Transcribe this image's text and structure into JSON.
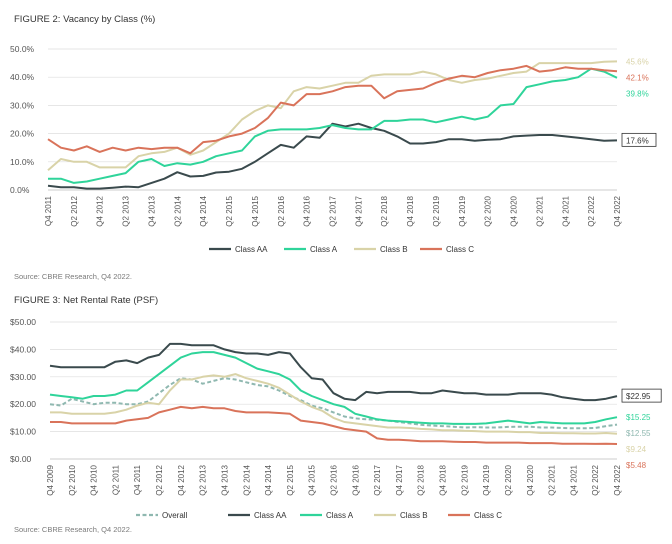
{
  "fig2": {
    "title": "FIGURE 2: Vacancy by Class (%)",
    "source": "Source: CBRE Research, Q4 2022."
  },
  "fig3": {
    "title": "FIGURE 3: Net Rental Rate (PSF)",
    "source": "Source: CBRE Research, Q4 2022."
  },
  "chart_data": [
    {
      "type": "line",
      "title": "FIGURE 2: Vacancy by Class (%)",
      "x": [
        "Q4 2011",
        "Q1 2012",
        "Q2 2012",
        "Q3 2012",
        "Q4 2012",
        "Q1 2013",
        "Q2 2013",
        "Q3 2013",
        "Q4 2013",
        "Q1 2014",
        "Q2 2014",
        "Q3 2014",
        "Q4 2014",
        "Q1 2015",
        "Q2 2015",
        "Q3 2015",
        "Q4 2015",
        "Q1 2016",
        "Q2 2016",
        "Q3 2016",
        "Q4 2016",
        "Q1 2017",
        "Q2 2017",
        "Q3 2017",
        "Q4 2017",
        "Q1 2018",
        "Q2 2018",
        "Q3 2018",
        "Q4 2018",
        "Q1 2019",
        "Q2 2019",
        "Q3 2019",
        "Q4 2019",
        "Q1 2020",
        "Q2 2020",
        "Q3 2020",
        "Q4 2020",
        "Q1 2021",
        "Q2 2021",
        "Q3 2021",
        "Q4 2021",
        "Q1 2022",
        "Q2 2022",
        "Q3 2022",
        "Q4 2022"
      ],
      "x_tick_labels": [
        "Q4 2011",
        "Q2 2012",
        "Q4 2012",
        "Q2 2013",
        "Q4 2013",
        "Q2 2014",
        "Q4 2014",
        "Q2 2015",
        "Q4 2015",
        "Q2 2016",
        "Q4 2016",
        "Q2 2017",
        "Q4 2017",
        "Q2 2018",
        "Q4 2018",
        "Q2 2019",
        "Q4 2019",
        "Q2 2020",
        "Q4 2020",
        "Q2 2021",
        "Q4 2021",
        "Q2 2022",
        "Q4 2022"
      ],
      "y_tick_labels": [
        "0.0%",
        "10.0%",
        "20.0%",
        "30.0%",
        "40.0%",
        "50.0%"
      ],
      "ylim": [
        0,
        50
      ],
      "grid": true,
      "legend": "bottom",
      "series": [
        {
          "name": "Class AA",
          "color": "#3a4a4d",
          "values": [
            1.5,
            1.0,
            1.0,
            0.5,
            0.5,
            0.8,
            1.2,
            1.0,
            2.5,
            4.0,
            6.3,
            4.8,
            5.0,
            6.2,
            6.5,
            7.5,
            10.0,
            13.0,
            16.0,
            15.0,
            19.0,
            18.5,
            23.5,
            22.5,
            23.5,
            22.0,
            21.0,
            19.0,
            16.5,
            16.5,
            17.0,
            18.0,
            18.0,
            17.5,
            17.8,
            18.0,
            19.0,
            19.3,
            19.5,
            19.5,
            19.0,
            18.5,
            18.0,
            17.5,
            17.6
          ]
        },
        {
          "name": "Class A",
          "color": "#2fd49a",
          "values": [
            4.0,
            4.0,
            2.5,
            3.0,
            4.0,
            5.0,
            6.0,
            10.0,
            11.0,
            8.5,
            9.5,
            9.0,
            10.0,
            12.0,
            13.0,
            14.0,
            19.0,
            21.0,
            21.5,
            21.5,
            21.5,
            22.0,
            23.0,
            22.0,
            21.5,
            21.5,
            24.5,
            24.5,
            25.0,
            25.0,
            24.0,
            25.0,
            26.0,
            25.0,
            26.0,
            30.0,
            30.5,
            36.5,
            37.5,
            38.5,
            39.0,
            40.0,
            43.0,
            42.0,
            39.8
          ]
        },
        {
          "name": "Class B",
          "color": "#d9d3a8",
          "values": [
            7.0,
            11.0,
            10.0,
            10.0,
            8.0,
            8.0,
            8.0,
            12.0,
            13.0,
            13.5,
            15.0,
            12.5,
            14.0,
            17.0,
            20.0,
            25.0,
            28.0,
            30.0,
            29.0,
            35.0,
            36.5,
            36.0,
            37.0,
            38.0,
            38.0,
            40.5,
            41.0,
            41.0,
            41.0,
            42.0,
            41.0,
            39.0,
            38.0,
            39.0,
            39.5,
            40.5,
            41.5,
            42.0,
            45.0,
            45.0,
            45.0,
            45.0,
            45.0,
            45.5,
            45.6
          ]
        },
        {
          "name": "Class C",
          "color": "#d9735a",
          "values": [
            18.0,
            15.0,
            14.0,
            15.5,
            13.5,
            15.0,
            14.0,
            15.0,
            14.5,
            15.0,
            15.0,
            13.0,
            17.0,
            17.5,
            19.0,
            20.0,
            22.0,
            25.5,
            31.0,
            30.0,
            34.0,
            34.0,
            35.0,
            36.5,
            37.0,
            37.0,
            32.5,
            35.0,
            35.5,
            36.0,
            38.0,
            39.5,
            40.5,
            40.0,
            41.5,
            42.5,
            43.0,
            44.0,
            42.0,
            42.5,
            43.5,
            43.0,
            43.0,
            42.5,
            42.1
          ]
        }
      ],
      "callouts": [
        {
          "series": "Class B",
          "label": "45.6%"
        },
        {
          "series": "Class C",
          "label": "42.1%"
        },
        {
          "series": "Class A",
          "label": "39.8%"
        },
        {
          "series": "Class AA",
          "label": "17.6%"
        }
      ]
    },
    {
      "type": "line",
      "title": "FIGURE 3: Net Rental Rate (PSF)",
      "x": [
        "Q4 2009",
        "Q1 2010",
        "Q2 2010",
        "Q3 2010",
        "Q4 2010",
        "Q1 2011",
        "Q2 2011",
        "Q3 2011",
        "Q4 2011",
        "Q1 2012",
        "Q2 2012",
        "Q3 2012",
        "Q4 2012",
        "Q1 2013",
        "Q2 2013",
        "Q3 2013",
        "Q4 2013",
        "Q1 2014",
        "Q2 2014",
        "Q3 2014",
        "Q4 2014",
        "Q1 2015",
        "Q2 2015",
        "Q3 2015",
        "Q4 2015",
        "Q1 2016",
        "Q2 2016",
        "Q3 2016",
        "Q4 2016",
        "Q1 2017",
        "Q2 2017",
        "Q3 2017",
        "Q4 2017",
        "Q1 2018",
        "Q2 2018",
        "Q3 2018",
        "Q4 2018",
        "Q1 2019",
        "Q2 2019",
        "Q3 2019",
        "Q4 2019",
        "Q1 2020",
        "Q2 2020",
        "Q3 2020",
        "Q4 2020",
        "Q1 2021",
        "Q2 2021",
        "Q3 2021",
        "Q4 2021",
        "Q1 2022",
        "Q2 2022",
        "Q3 2022",
        "Q4 2022"
      ],
      "x_tick_labels": [
        "Q4 2009",
        "Q2 2010",
        "Q4 2010",
        "Q2 2011",
        "Q4 2011",
        "Q2 2012",
        "Q4 2012",
        "Q2 2013",
        "Q4 2013",
        "Q2 2014",
        "Q4 2014",
        "Q2 2015",
        "Q4 2015",
        "Q2 2016",
        "Q4 2016",
        "Q2 2017",
        "Q4 2017",
        "Q2 2018",
        "Q4 2018",
        "Q2 2019",
        "Q4 2019",
        "Q2 2020",
        "Q4 2020",
        "Q2 2021",
        "Q4 2021",
        "Q2 2022",
        "Q4 2022"
      ],
      "y_tick_labels": [
        "$0.00",
        "$10.00",
        "$20.00",
        "$30.00",
        "$40.00",
        "$50.00"
      ],
      "ylim": [
        0,
        50
      ],
      "grid": true,
      "legend": "bottom",
      "series": [
        {
          "name": "Overall",
          "color": "#8fb8b0",
          "dashed": true,
          "values": [
            20.0,
            19.5,
            22.0,
            21.0,
            20.0,
            20.5,
            20.5,
            20.0,
            20.0,
            21.0,
            24.0,
            27.0,
            29.5,
            29.0,
            27.5,
            28.5,
            29.5,
            29.0,
            28.0,
            27.0,
            26.5,
            25.0,
            23.0,
            21.5,
            19.5,
            18.5,
            17.0,
            15.5,
            14.8,
            14.5,
            14.3,
            14.0,
            13.5,
            13.0,
            12.5,
            12.2,
            12.0,
            11.8,
            11.5,
            11.6,
            11.5,
            11.5,
            11.7,
            11.8,
            11.8,
            11.5,
            11.5,
            11.3,
            11.2,
            11.2,
            11.3,
            12.0,
            12.55
          ]
        },
        {
          "name": "Class AA",
          "color": "#3a4a4d",
          "values": [
            34.0,
            33.5,
            33.5,
            33.5,
            33.5,
            33.5,
            35.5,
            36.0,
            35.0,
            37.0,
            38.0,
            42.0,
            42.0,
            41.5,
            41.5,
            41.5,
            40.0,
            39.0,
            38.5,
            38.5,
            38.0,
            39.0,
            38.5,
            33.5,
            29.5,
            29.0,
            24.0,
            22.0,
            21.5,
            24.5,
            24.0,
            24.5,
            24.5,
            24.5,
            24.0,
            24.0,
            25.0,
            24.5,
            24.0,
            24.0,
            23.5,
            23.5,
            23.5,
            24.0,
            24.0,
            24.0,
            23.5,
            22.5,
            22.0,
            21.5,
            21.5,
            22.0,
            22.95
          ]
        },
        {
          "name": "Class A",
          "color": "#2fd49a",
          "values": [
            23.5,
            23.0,
            22.5,
            22.0,
            23.0,
            23.0,
            23.5,
            25.0,
            25.0,
            28.0,
            31.0,
            34.0,
            37.0,
            38.5,
            39.0,
            39.0,
            38.0,
            37.0,
            35.0,
            33.0,
            32.0,
            31.0,
            29.0,
            25.0,
            23.0,
            21.5,
            20.0,
            19.0,
            16.5,
            15.5,
            14.5,
            14.0,
            13.8,
            13.5,
            13.2,
            13.0,
            13.0,
            12.8,
            12.8,
            12.8,
            13.0,
            13.5,
            14.0,
            13.5,
            13.0,
            13.5,
            13.2,
            13.0,
            13.0,
            13.0,
            13.5,
            14.5,
            15.25
          ]
        },
        {
          "name": "Class B",
          "color": "#d9d3a8",
          "values": [
            17.0,
            17.0,
            16.5,
            16.5,
            16.5,
            16.5,
            17.0,
            18.0,
            19.5,
            20.5,
            20.0,
            25.0,
            29.0,
            29.0,
            30.0,
            30.5,
            30.0,
            31.0,
            29.5,
            28.5,
            27.5,
            26.0,
            23.5,
            21.0,
            19.0,
            17.5,
            15.0,
            13.5,
            13.0,
            12.5,
            12.0,
            11.5,
            11.5,
            11.3,
            11.0,
            10.8,
            10.5,
            10.5,
            10.3,
            10.2,
            10.0,
            10.0,
            10.0,
            9.8,
            9.8,
            9.5,
            9.5,
            9.4,
            9.4,
            9.3,
            9.3,
            9.5,
            9.24
          ]
        },
        {
          "name": "Class C",
          "color": "#d9735a",
          "values": [
            13.5,
            13.5,
            13.0,
            13.0,
            13.0,
            13.0,
            13.0,
            14.0,
            14.5,
            15.0,
            17.0,
            18.0,
            19.0,
            18.5,
            19.0,
            18.5,
            18.5,
            17.5,
            17.0,
            17.0,
            17.0,
            16.8,
            16.5,
            14.0,
            13.5,
            13.0,
            12.0,
            11.0,
            10.5,
            10.0,
            7.5,
            7.0,
            7.0,
            6.8,
            6.5,
            6.5,
            6.5,
            6.3,
            6.2,
            6.2,
            6.0,
            6.0,
            6.0,
            6.0,
            5.8,
            5.8,
            5.8,
            5.6,
            5.6,
            5.6,
            5.5,
            5.6,
            5.48
          ]
        }
      ],
      "callouts": [
        {
          "series": "Class AA",
          "label": "$22.95"
        },
        {
          "series": "Class A",
          "label": "$15.25"
        },
        {
          "series": "Overall",
          "label": "$12.55"
        },
        {
          "series": "Class B",
          "label": "$9.24"
        },
        {
          "series": "Class C",
          "label": "$5.48"
        }
      ]
    }
  ]
}
